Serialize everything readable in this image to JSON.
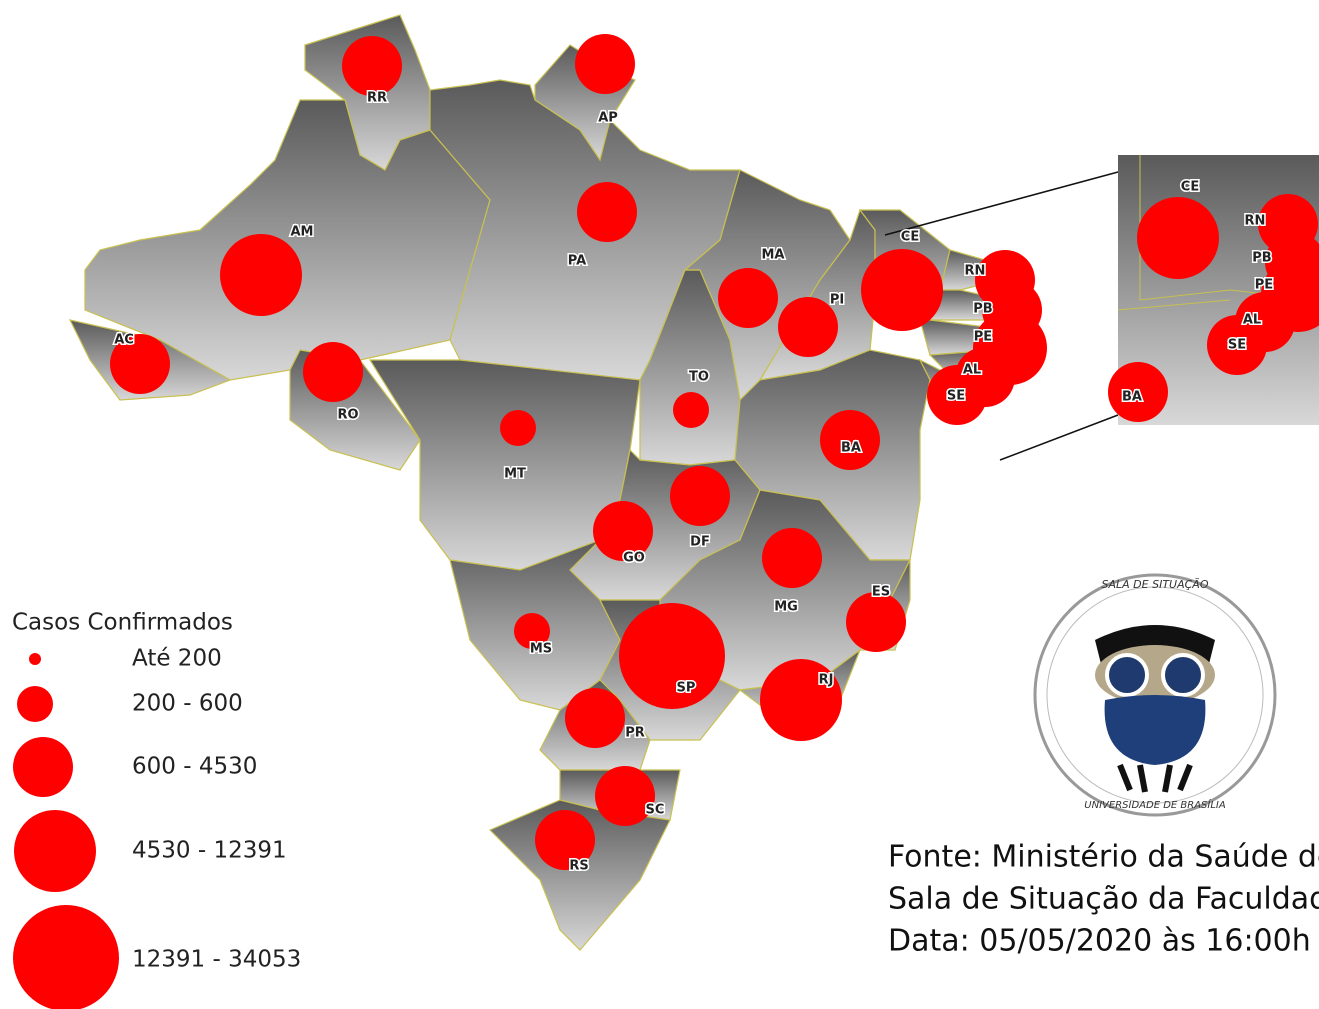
{
  "legend": {
    "title": "Casos Confirmados",
    "classes": [
      "Até 200",
      "200 - 600",
      "600 - 4530",
      "4530 - 12391",
      "12391 - 34053"
    ]
  },
  "states": [
    "RR",
    "AP",
    "AM",
    "PA",
    "AC",
    "RO",
    "MT",
    "TO",
    "MA",
    "PI",
    "CE",
    "RN",
    "PB",
    "PE",
    "AL",
    "SE",
    "BA",
    "GO",
    "DF",
    "MG",
    "ES",
    "MS",
    "SP",
    "RJ",
    "PR",
    "SC",
    "RS"
  ],
  "inset": [
    "CE",
    "RN",
    "PB",
    "PE",
    "AL",
    "SE",
    "BA"
  ],
  "logo": {
    "top": "SALA DE SITUAÇÃO",
    "bottom": "UNIVERSIDADE DE BRASÍLIA"
  },
  "source": [
    "Fonte: Ministério da Saúde de",
    "Sala de Situação da Faculdad",
    "Data:  05/05/2020 às 16:00h"
  ]
}
